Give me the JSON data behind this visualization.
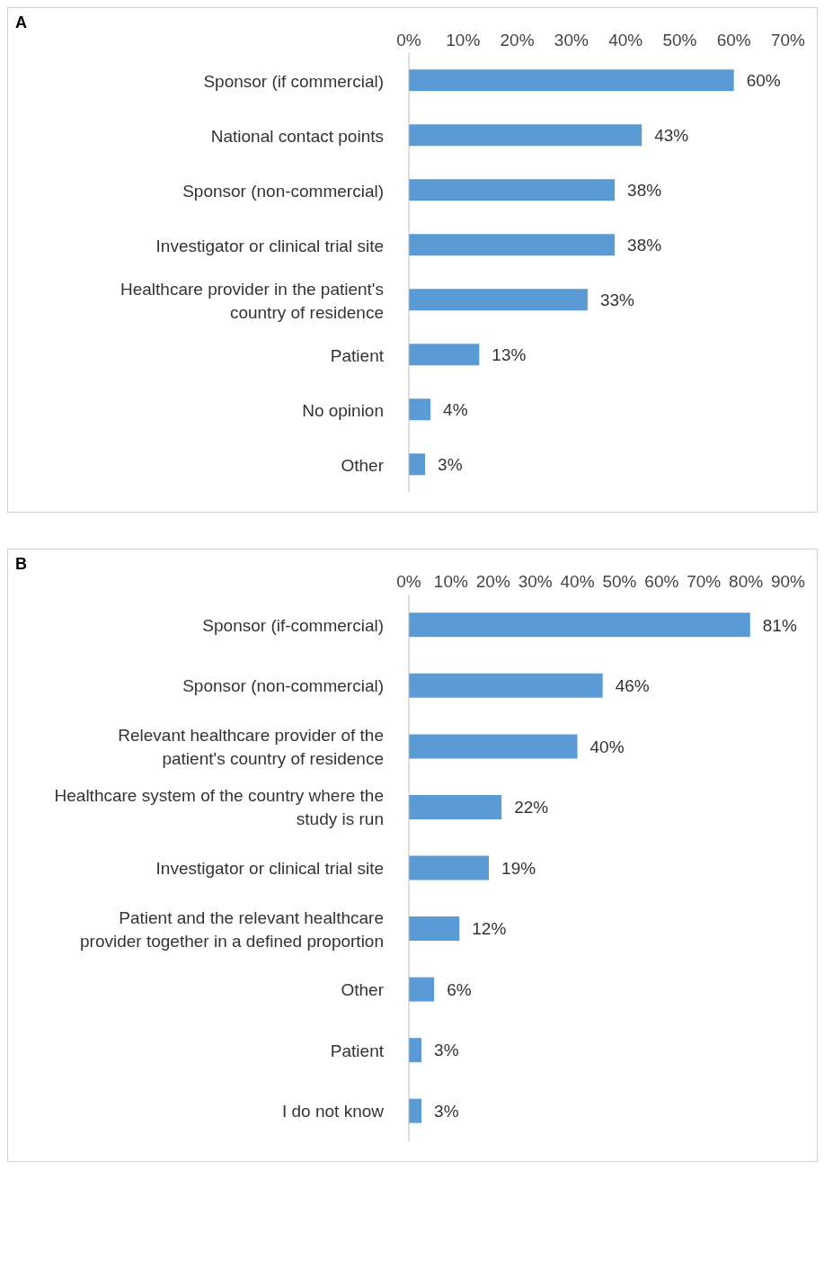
{
  "chart_data": [
    {
      "type": "bar",
      "title": "A",
      "orientation": "horizontal",
      "categories": [
        "Sponsor (if commercial)",
        "National contact points",
        "Sponsor (non-commercial)",
        "Investigator or clinical trial site",
        "Healthcare provider in the patient's country of residence",
        "Patient",
        "No opinion",
        "Other"
      ],
      "values": [
        60,
        43,
        38,
        38,
        33,
        13,
        4,
        3
      ],
      "value_labels": [
        "60%",
        "43%",
        "38%",
        "38%",
        "33%",
        "13%",
        "4%",
        "3%"
      ],
      "color": "#5b9bd5",
      "xlim": [
        0,
        70
      ],
      "xticks": [
        {
          "value": 0,
          "label": "0%"
        },
        {
          "value": 10,
          "label": "10%"
        },
        {
          "value": 20,
          "label": "20%"
        },
        {
          "value": 30,
          "label": "30%"
        },
        {
          "value": 40,
          "label": "40%"
        },
        {
          "value": 50,
          "label": "50%"
        },
        {
          "value": 60,
          "label": "60%"
        },
        {
          "value": 70,
          "label": "70%"
        }
      ],
      "grid": false,
      "legend": false
    },
    {
      "type": "bar",
      "title": "B",
      "orientation": "horizontal",
      "categories": [
        "Sponsor (if-commercial)",
        "Sponsor (non-commercial)",
        "Relevant healthcare provider of the patient's country of residence",
        "Healthcare system of the country where the study is run",
        "Investigator or clinical trial site",
        "Patient and the relevant healthcare provider together in a defined proportion",
        "Other",
        "Patient",
        "I do not know"
      ],
      "values": [
        81,
        46,
        40,
        22,
        19,
        12,
        6,
        3,
        3
      ],
      "value_labels": [
        "81%",
        "46%",
        "40%",
        "22%",
        "19%",
        "12%",
        "6%",
        "3%",
        "3%"
      ],
      "color": "#5b9bd5",
      "xlim": [
        0,
        90
      ],
      "xticks": [
        {
          "value": 0,
          "label": "0%"
        },
        {
          "value": 10,
          "label": "10%"
        },
        {
          "value": 20,
          "label": "20%"
        },
        {
          "value": 30,
          "label": "30%"
        },
        {
          "value": 40,
          "label": "40%"
        },
        {
          "value": 50,
          "label": "50%"
        },
        {
          "value": 60,
          "label": "60%"
        },
        {
          "value": 70,
          "label": "70%"
        },
        {
          "value": 80,
          "label": "80%"
        },
        {
          "value": 90,
          "label": "90%"
        }
      ],
      "grid": false,
      "legend": false
    }
  ]
}
